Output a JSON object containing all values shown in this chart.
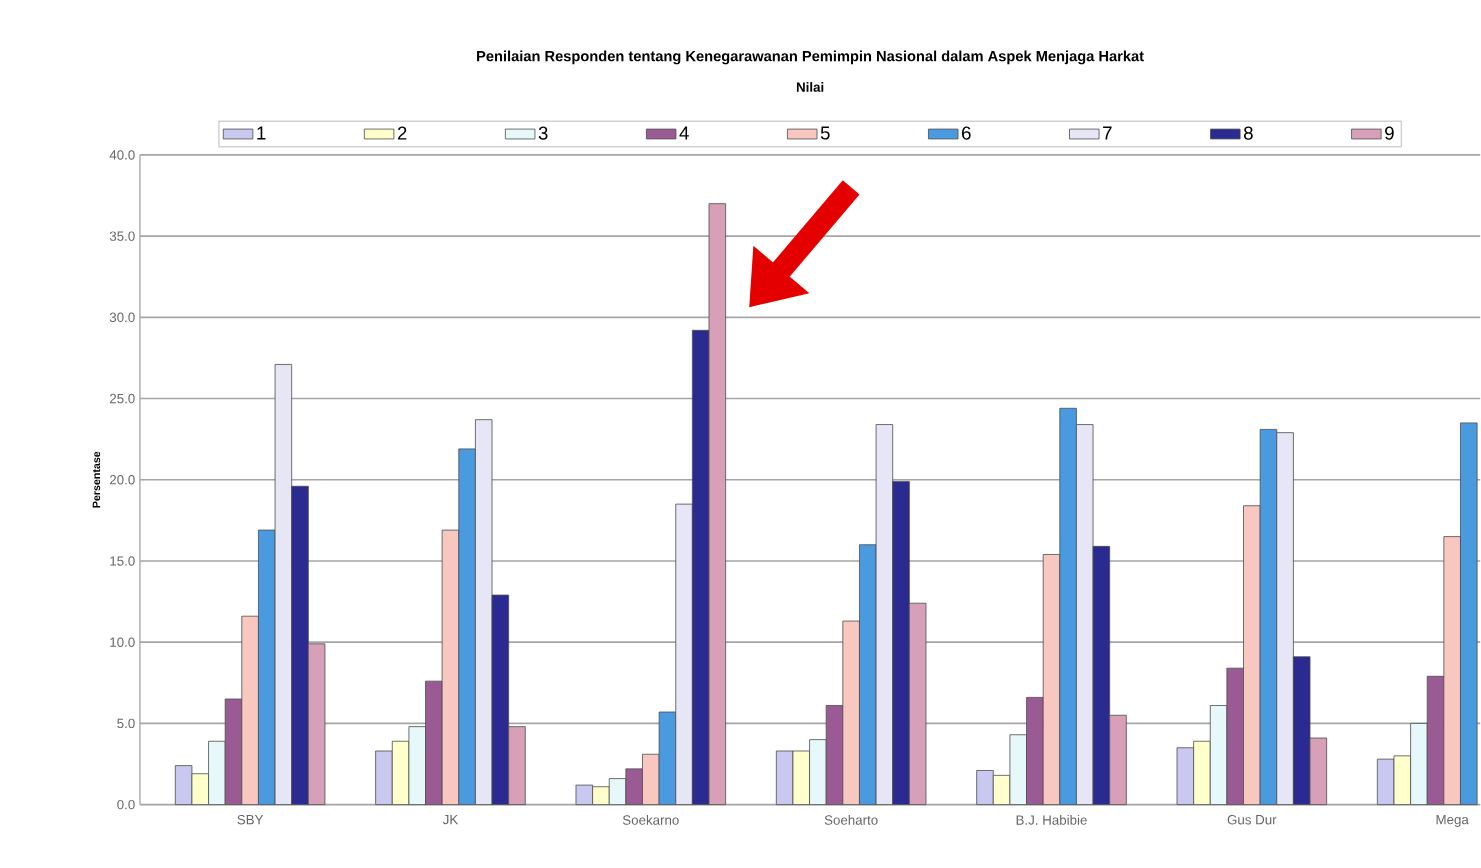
{
  "chart_data": {
    "type": "bar",
    "title": "Penilaian Responden tentang Kenegarawanan Pemimpin Nasional dalam Aspek Menjaga Harkat",
    "legend_title": "Nilai",
    "ylabel": "Persentase",
    "categories": [
      "SBY",
      "JK",
      "Soekarno",
      "Soeharto",
      "B.J. Habibie",
      "Gus Dur",
      "Mega"
    ],
    "series": [
      {
        "name": "1",
        "color": "#c8c8f0",
        "values": [
          2.4,
          3.3,
          1.2,
          3.3,
          2.1,
          3.5,
          2.8
        ]
      },
      {
        "name": "2",
        "color": "#ffffcc",
        "values": [
          1.9,
          3.9,
          1.1,
          3.3,
          1.8,
          3.9,
          3.0
        ]
      },
      {
        "name": "3",
        "color": "#e6f8fa",
        "values": [
          3.9,
          4.8,
          1.6,
          4.0,
          4.3,
          6.1,
          5.0
        ]
      },
      {
        "name": "4",
        "color": "#9a5a94",
        "values": [
          6.5,
          7.6,
          2.2,
          6.1,
          6.6,
          8.4,
          7.9
        ]
      },
      {
        "name": "5",
        "color": "#f8c8c0",
        "values": [
          11.6,
          16.9,
          3.1,
          11.3,
          15.4,
          18.4,
          16.5
        ]
      },
      {
        "name": "6",
        "color": "#4a9ae0",
        "values": [
          16.9,
          21.9,
          5.7,
          16.0,
          24.4,
          23.1,
          23.5
        ]
      },
      {
        "name": "7",
        "color": "#e6e6f6",
        "values": [
          27.1,
          23.7,
          18.5,
          23.4,
          23.4,
          22.9,
          null
        ]
      },
      {
        "name": "8",
        "color": "#2a2a90",
        "values": [
          19.6,
          12.9,
          29.2,
          19.9,
          15.9,
          9.1,
          null
        ]
      },
      {
        "name": "9",
        "color": "#d8a0b8",
        "values": [
          9.9,
          4.8,
          37.0,
          12.4,
          5.5,
          4.1,
          null
        ]
      }
    ],
    "ylim": [
      0,
      40
    ],
    "yticks": [
      {
        "value": 0,
        "label": "0.0"
      },
      {
        "value": 5,
        "label": "5.0"
      },
      {
        "value": 10,
        "label": "10.0"
      },
      {
        "value": 15,
        "label": "15.0"
      },
      {
        "value": 20,
        "label": "20.0"
      },
      {
        "value": 25,
        "label": "25.0"
      },
      {
        "value": 30,
        "label": "30.0"
      },
      {
        "value": 35,
        "label": "35.0"
      },
      {
        "value": 40,
        "label": "40.0"
      }
    ],
    "grid": "y",
    "legend": "top"
  }
}
